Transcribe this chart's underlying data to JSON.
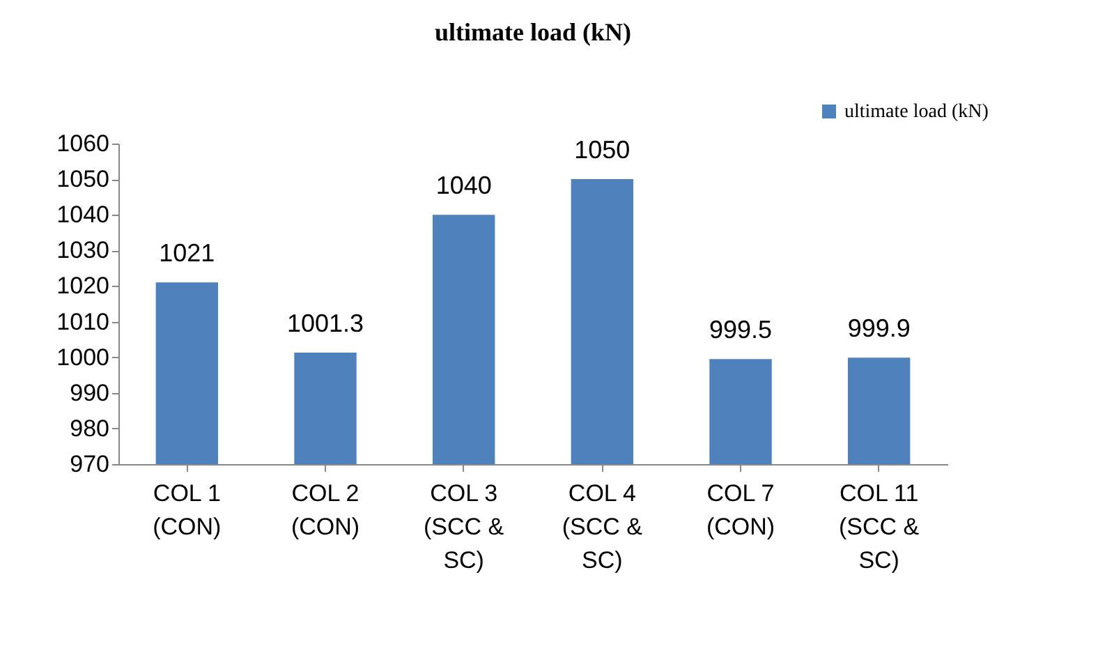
{
  "chart_data": {
    "type": "bar",
    "title": "ultimate load (kN)",
    "categories": [
      "COL 1\n(CON)",
      "COL 2\n(CON)",
      "COL 3\n(SCC &\nSC)",
      "COL 4\n(SCC &\nSC)",
      "COL 7\n(CON)",
      "COL 11\n(SCC &\nSC)"
    ],
    "series": [
      {
        "name": "ultimate load (kN)",
        "color": "#4f81bd",
        "values": [
          1021,
          1001.3,
          1040,
          1050,
          999.5,
          999.9
        ]
      }
    ],
    "ylim": [
      970,
      1060
    ],
    "yticks": [
      970,
      980,
      990,
      1000,
      1010,
      1020,
      1030,
      1040,
      1050,
      1060
    ],
    "data_labels": true,
    "legend": "top right",
    "grid": false
  }
}
